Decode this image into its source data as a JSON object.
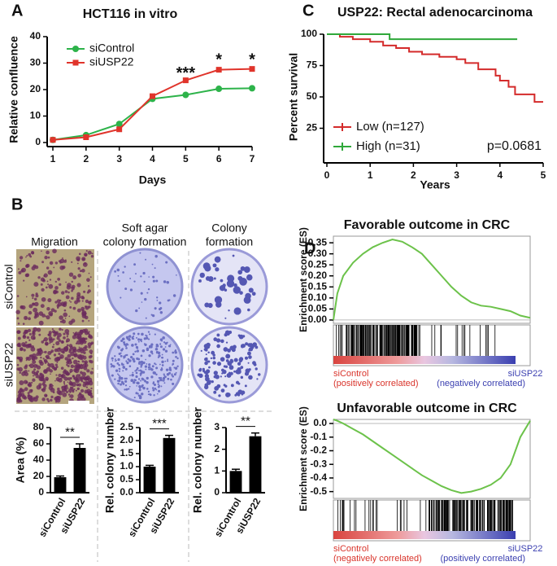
{
  "figure": {
    "panel_labels": [
      "A",
      "B",
      "C",
      "D"
    ],
    "b_columns": [
      [
        "Migration"
      ],
      [
        "Soft agar",
        "colony formation"
      ],
      [
        "Colony",
        "formation"
      ]
    ],
    "b_rows": [
      "siControl",
      "siUSP22"
    ]
  },
  "chart_data": [
    {
      "type": "line",
      "title": "HCT116 in vitro",
      "xlabel": "Days",
      "ylabel": "Relative confluence",
      "x": [
        1,
        2,
        3,
        4,
        5,
        6,
        7
      ],
      "xlim": [
        1,
        7
      ],
      "xticks": [
        1,
        2,
        3,
        4,
        5,
        6,
        7
      ],
      "ylim": [
        0,
        40
      ],
      "yticks": [
        0,
        10,
        20,
        30,
        40
      ],
      "series": [
        {
          "name": "siControl",
          "color": "#2db34a",
          "marker": "circle",
          "values": [
            1,
            2.8,
            7,
            16.5,
            18,
            20.3,
            20.5
          ]
        },
        {
          "name": "siUSP22",
          "color": "#e0342b",
          "marker": "square",
          "values": [
            1,
            2,
            5,
            17.5,
            23.5,
            27.5,
            27.8
          ]
        }
      ],
      "annotations": [
        {
          "text": "***",
          "x": 5,
          "y": 26
        },
        {
          "text": "*",
          "x": 6,
          "y": 31
        },
        {
          "text": "*",
          "x": 7,
          "y": 31
        }
      ]
    },
    {
      "type": "step",
      "title": "USP22: Rectal adenocarcinoma",
      "xlabel": "Years",
      "ylabel": "Percent survival",
      "xlim": [
        0,
        5
      ],
      "xticks": [
        0,
        1,
        2,
        3,
        4,
        5
      ],
      "ylim": [
        0,
        100
      ],
      "yticks": [
        25,
        50,
        75,
        100
      ],
      "series": [
        {
          "name": "Low (n=127)",
          "color": "#d42b2b",
          "x": [
            0,
            0.3,
            0.6,
            1.0,
            1.3,
            1.6,
            1.9,
            2.2,
            2.6,
            3.0,
            3.2,
            3.5,
            3.9,
            4.0,
            4.2,
            4.35,
            4.8,
            5.0
          ],
          "values": [
            100,
            98,
            96,
            94,
            91,
            89,
            86,
            84,
            82,
            80,
            77,
            72,
            67,
            63,
            58,
            52,
            46,
            46
          ]
        },
        {
          "name": "High (n=31)",
          "color": "#2fa83a",
          "x": [
            0,
            1.45,
            4.4
          ],
          "values": [
            100,
            96,
            96
          ]
        }
      ],
      "annotations": [
        {
          "text": "p=0.0681"
        }
      ]
    },
    {
      "type": "bar",
      "ylabel": "Area (%)",
      "categories": [
        "siControl",
        "siUSP22"
      ],
      "values": [
        19,
        55
      ],
      "errors": [
        1.5,
        5
      ],
      "color": "#000000",
      "ylim": [
        0,
        80
      ],
      "yticks": [
        0,
        20,
        40,
        60,
        80
      ],
      "significance": "**"
    },
    {
      "type": "bar",
      "ylabel": "Rel. colony number",
      "categories": [
        "siControl",
        "siUSP22"
      ],
      "values": [
        1.0,
        2.1
      ],
      "errors": [
        0.05,
        0.1
      ],
      "color": "#000000",
      "ylim": [
        0,
        2.5
      ],
      "yticks": [
        {
          "value": 0,
          "label": "0.0"
        },
        0.5,
        {
          "value": 1,
          "label": "1.0"
        },
        1.5,
        {
          "value": 2,
          "label": "2.0"
        },
        2.5
      ],
      "significance": "***"
    },
    {
      "type": "bar",
      "ylabel": "Rel. colony number",
      "categories": [
        "siControl",
        "siUSP22"
      ],
      "values": [
        1.0,
        2.6
      ],
      "errors": [
        0.08,
        0.15
      ],
      "color": "#000000",
      "ylim": [
        0,
        3
      ],
      "yticks": [
        0,
        1,
        2,
        3
      ],
      "significance": "**"
    },
    {
      "type": "gsea",
      "title": "Favorable outcome in CRC",
      "ylabel": "Enrichment score (ES)",
      "x": [
        0,
        2,
        5,
        10,
        15,
        20,
        25,
        30,
        35,
        40,
        45,
        50,
        55,
        60,
        65,
        70,
        75,
        80,
        85,
        90,
        95,
        100
      ],
      "xlim": [
        0,
        100
      ],
      "ylim": [
        -0.015,
        0.38
      ],
      "yticks": [
        {
          "value": 0,
          "label": "0.00"
        },
        0.05,
        {
          "value": 0.1,
          "label": "0.10"
        },
        0.15,
        {
          "value": 0.2,
          "label": "0.20"
        },
        0.25,
        {
          "value": 0.3,
          "label": "0.30"
        },
        0.35
      ],
      "series": [
        {
          "color": "#6cc24a",
          "values": [
            0,
            0.12,
            0.2,
            0.26,
            0.3,
            0.33,
            0.35,
            0.365,
            0.355,
            0.33,
            0.3,
            0.25,
            0.2,
            0.15,
            0.11,
            0.08,
            0.065,
            0.06,
            0.05,
            0.04,
            0.02,
            0.01
          ]
        }
      ],
      "left_label": [
        "siControl",
        "(positively correlated)"
      ],
      "right_label": [
        "siUSP22",
        "(negatively correlated)"
      ]
    },
    {
      "type": "gsea",
      "title": "Unfavorable outcome in CRC",
      "ylabel": "Enrichment score (ES)",
      "x": [
        0,
        2,
        5,
        10,
        15,
        20,
        25,
        30,
        35,
        40,
        45,
        50,
        55,
        60,
        65,
        70,
        75,
        80,
        85,
        90,
        95,
        100
      ],
      "xlim": [
        0,
        100
      ],
      "ylim": [
        -0.55,
        0.03
      ],
      "yticks": [
        {
          "value": 0,
          "label": "0.0"
        },
        -0.1,
        -0.2,
        -0.3,
        -0.4,
        -0.5
      ],
      "series": [
        {
          "color": "#6cc24a",
          "values": [
            0.03,
            0.02,
            0,
            -0.04,
            -0.08,
            -0.13,
            -0.18,
            -0.23,
            -0.28,
            -0.33,
            -0.38,
            -0.42,
            -0.46,
            -0.49,
            -0.51,
            -0.5,
            -0.48,
            -0.45,
            -0.4,
            -0.3,
            -0.1,
            0.02
          ]
        }
      ],
      "left_label": [
        "siControl",
        "(negatively correlated)"
      ],
      "right_label": [
        "siUSP22",
        "(positively correlated)"
      ]
    }
  ]
}
